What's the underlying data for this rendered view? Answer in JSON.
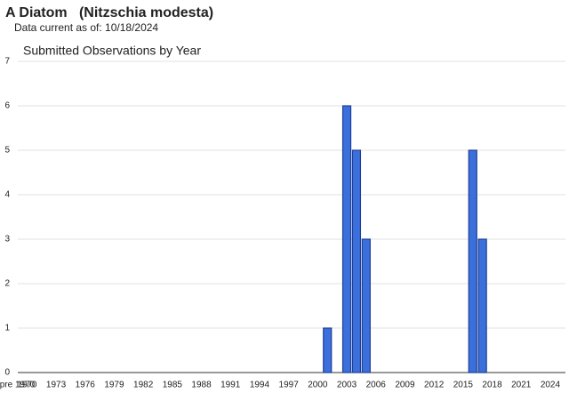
{
  "chart_data": {
    "type": "bar",
    "title": "A Diatom   (Nitzschia modesta)",
    "subtitle": "Data current as of: 10/18/2024",
    "chart_title": "Submitted Observations by Year",
    "categories": [
      "pre 1970",
      "1970",
      null,
      null,
      "1973",
      null,
      null,
      "1976",
      null,
      null,
      "1979",
      null,
      null,
      "1982",
      null,
      null,
      "1985",
      null,
      null,
      "1988",
      null,
      null,
      "1991",
      null,
      null,
      "1994",
      null,
      null,
      "1997",
      null,
      null,
      "2000",
      null,
      null,
      "2003",
      null,
      null,
      "2006",
      null,
      null,
      "2009",
      null,
      null,
      "2012",
      null,
      null,
      "2015",
      null,
      null,
      "2018",
      null,
      null,
      "2021",
      null,
      null,
      "2024"
    ],
    "values": [
      0,
      0,
      0,
      0,
      0,
      0,
      0,
      0,
      0,
      0,
      0,
      0,
      0,
      0,
      0,
      0,
      0,
      0,
      0,
      0,
      0,
      0,
      0,
      0,
      0,
      0,
      0,
      0,
      0,
      0,
      0,
      0,
      1,
      0,
      6,
      5,
      3,
      0,
      0,
      0,
      0,
      0,
      0,
      0,
      0,
      0,
      0,
      5,
      3,
      0,
      0,
      0,
      0,
      0,
      0,
      0
    ],
    "color": "#3b6fdc",
    "ylim": [
      0,
      7
    ],
    "yticks": [
      0,
      1,
      2,
      3,
      4,
      5,
      6,
      7
    ],
    "grid": true
  }
}
